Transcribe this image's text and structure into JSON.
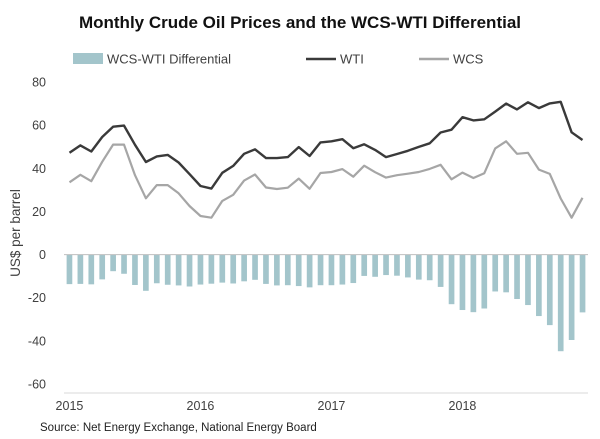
{
  "chart_data": {
    "type": "bar",
    "title": "Monthly Crude Oil Prices and the WCS-WTI Differential",
    "ylabel": "US$ per barrel",
    "xlabel": "",
    "ylim": [
      -60,
      80
    ],
    "yticks": [
      -60,
      -40,
      -20,
      0,
      20,
      40,
      60,
      80
    ],
    "x_tick_labels": [
      "2015",
      "2016",
      "2017",
      "2018"
    ],
    "months": [
      "2015-01",
      "2015-02",
      "2015-03",
      "2015-04",
      "2015-05",
      "2015-06",
      "2015-07",
      "2015-08",
      "2015-09",
      "2015-10",
      "2015-11",
      "2015-12",
      "2016-01",
      "2016-02",
      "2016-03",
      "2016-04",
      "2016-05",
      "2016-06",
      "2016-07",
      "2016-08",
      "2016-09",
      "2016-10",
      "2016-11",
      "2016-12",
      "2017-01",
      "2017-02",
      "2017-03",
      "2017-04",
      "2017-05",
      "2017-06",
      "2017-07",
      "2017-08",
      "2017-09",
      "2017-10",
      "2017-11",
      "2017-12",
      "2018-01",
      "2018-02",
      "2018-03",
      "2018-04",
      "2018-05",
      "2018-06",
      "2018-07",
      "2018-08",
      "2018-09",
      "2018-10",
      "2018-11",
      "2018-12"
    ],
    "grid": false,
    "legend_position": "top",
    "source": "Source: Net Energy Exchange, National Energy Board",
    "series": [
      {
        "name": "WCS-WTI Differential",
        "kind": "bar",
        "color": "#a3c5cb",
        "values": [
          -13.7,
          -13.6,
          -13.8,
          -11.5,
          -7.7,
          -8.9,
          -14.1,
          -16.8,
          -13.3,
          -14.0,
          -14.3,
          -14.8,
          -13.9,
          -13.5,
          -13.0,
          -13.4,
          -12.4,
          -11.7,
          -13.6,
          -14.3,
          -14.2,
          -14.6,
          -15.2,
          -14.2,
          -14.2,
          -13.9,
          -13.2,
          -9.9,
          -10.3,
          -9.5,
          -9.8,
          -10.6,
          -11.6,
          -11.9,
          -15.0,
          -23.0,
          -25.7,
          -26.7,
          -25.0,
          -17.1,
          -17.5,
          -20.6,
          -23.4,
          -28.5,
          -32.7,
          -44.8,
          -39.6,
          -26.8
        ]
      },
      {
        "name": "WTI",
        "kind": "line",
        "color": "#3a3a3a",
        "values": [
          47.2,
          50.6,
          47.8,
          54.5,
          59.3,
          59.8,
          50.9,
          42.9,
          45.5,
          46.2,
          42.7,
          37.3,
          31.8,
          30.6,
          37.9,
          41.1,
          46.7,
          48.8,
          44.7,
          44.7,
          45.2,
          49.8,
          45.7,
          52.0,
          52.5,
          53.5,
          49.3,
          51.1,
          48.5,
          45.2,
          46.6,
          48.1,
          49.9,
          51.6,
          56.6,
          57.9,
          63.7,
          62.2,
          62.7,
          66.3,
          70.0,
          67.3,
          70.6,
          67.9,
          70.1,
          70.8,
          56.7,
          53.1
        ]
      },
      {
        "name": "WCS",
        "kind": "line",
        "color": "#a6a6a6",
        "values": [
          33.5,
          37.0,
          34.0,
          43.0,
          51.0,
          51.0,
          36.8,
          26.1,
          32.2,
          32.2,
          28.4,
          22.5,
          17.9,
          17.1,
          24.9,
          27.7,
          34.3,
          37.1,
          31.1,
          30.4,
          31.0,
          35.2,
          30.5,
          37.8,
          38.3,
          39.6,
          36.1,
          41.2,
          38.2,
          35.7,
          36.8,
          37.5,
          38.3,
          39.7,
          41.6,
          34.9,
          38.0,
          35.5,
          37.7,
          49.2,
          52.5,
          46.7,
          47.2,
          39.4,
          37.4,
          26.0,
          17.1,
          26.3
        ]
      }
    ]
  },
  "legend": {
    "diff_label": "WCS-WTI Differential",
    "wti_label": "WTI",
    "wcs_label": "WCS"
  }
}
